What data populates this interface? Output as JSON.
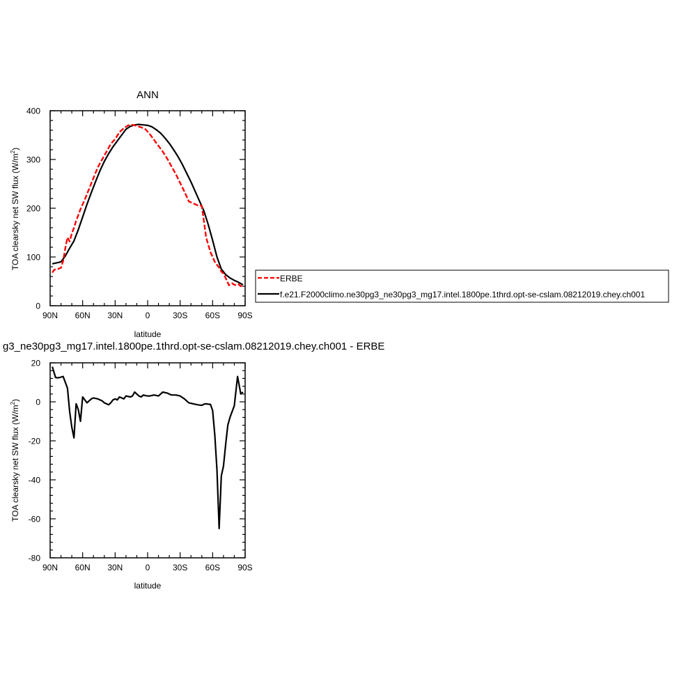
{
  "chart_data": [
    {
      "type": "line",
      "title": "ANN",
      "xlabel": "latitude",
      "ylabel_main": "TOA clearsky net SW flux (W/m",
      "ylabel_sup": "2",
      "ylabel_close": ")",
      "xlim": [
        90,
        -90
      ],
      "ylim": [
        0,
        400
      ],
      "x_ticks": [
        {
          "value": 90,
          "label": "90N"
        },
        {
          "value": 60,
          "label": "60N"
        },
        {
          "value": 30,
          "label": "30N"
        },
        {
          "value": 0,
          "label": "0"
        },
        {
          "value": -30,
          "label": "30S"
        },
        {
          "value": -60,
          "label": "60S"
        },
        {
          "value": -90,
          "label": "90S"
        }
      ],
      "y_ticks": [
        0,
        100,
        200,
        300,
        400
      ],
      "legend_position": "right",
      "series": [
        {
          "name": "ERBE",
          "color": "#ff0000",
          "dash": "dashed",
          "x": [
            88,
            86,
            83,
            80,
            78,
            76,
            74,
            72,
            70,
            68,
            66,
            62,
            58,
            54,
            50,
            46,
            42,
            38,
            34,
            30,
            26,
            22,
            18,
            14,
            10,
            6,
            2,
            -2,
            -6,
            -10,
            -14,
            -18,
            -22,
            -26,
            -30,
            -34,
            -38,
            -42,
            -46,
            -50,
            -54,
            -58,
            -62,
            -66,
            -68,
            -70,
            -72,
            -75,
            -78,
            -80,
            -82,
            -84,
            -86,
            -88
          ],
          "y": [
            68,
            74,
            75,
            78,
            92,
            118,
            140,
            132,
            148,
            160,
            174,
            198,
            218,
            240,
            262,
            284,
            300,
            316,
            332,
            342,
            356,
            364,
            370,
            371,
            369,
            366,
            362,
            352,
            340,
            328,
            316,
            302,
            286,
            270,
            252,
            234,
            214,
            210,
            206,
            205,
            140,
            110,
            90,
            78,
            70,
            66,
            57,
            42,
            46,
            43,
            42,
            44,
            40,
            42
          ],
          "marker_x": [
            78.5,
            73.5,
            68.5,
            58.5,
            48.5,
            38.5,
            28.5,
            18.5,
            8.5,
            -1.5,
            -11.5,
            -21.5,
            -31.5,
            -41.5,
            -51.5,
            -61.5,
            -71.5,
            -81.5
          ]
        },
        {
          "name": "f.e21.F2000climo.ne30pg3_ne30pg3_mg17.intel.1800pe.1thrd.opt-se-cslam.08212019.chey.ch001",
          "color": "#000000",
          "dash": "solid",
          "x": [
            88,
            84,
            80,
            76,
            72,
            68,
            64,
            60,
            56,
            52,
            48,
            44,
            40,
            36,
            32,
            28,
            24,
            20,
            16,
            12,
            8,
            4,
            0,
            -4,
            -8,
            -12,
            -16,
            -20,
            -24,
            -28,
            -32,
            -36,
            -40,
            -44,
            -48,
            -52,
            -56,
            -60,
            -64,
            -68,
            -72,
            -76,
            -80,
            -84,
            -88
          ],
          "y": [
            86,
            88,
            90,
            102,
            118,
            133,
            156,
            182,
            208,
            232,
            255,
            277,
            296,
            312,
            326,
            338,
            350,
            362,
            368,
            371,
            372,
            371,
            370,
            367,
            361,
            354,
            344,
            333,
            320,
            306,
            290,
            272,
            254,
            234,
            214,
            194,
            166,
            134,
            100,
            75,
            64,
            57,
            52,
            48,
            43
          ]
        }
      ]
    },
    {
      "type": "line",
      "title": "g3_ne30pg3_mg17.intel.1800pe.1thrd.opt-se-cslam.08212019.chey.ch001 - ERBE",
      "xlabel": "latitude",
      "ylabel_main": "TOA clearsky net SW flux (W/m",
      "ylabel_sup": "2",
      "ylabel_close": ")",
      "xlim": [
        90,
        -90
      ],
      "ylim": [
        -80,
        20
      ],
      "x_ticks": [
        {
          "value": 90,
          "label": "90N"
        },
        {
          "value": 60,
          "label": "60N"
        },
        {
          "value": 30,
          "label": "30N"
        },
        {
          "value": 0,
          "label": "0"
        },
        {
          "value": -30,
          "label": "30S"
        },
        {
          "value": -60,
          "label": "60S"
        },
        {
          "value": -90,
          "label": "90S"
        }
      ],
      "y_ticks": [
        -80,
        -60,
        -40,
        -20,
        0,
        20
      ],
      "series": [
        {
          "name": "",
          "color": "#000000",
          "dash": "solid",
          "x": [
            88,
            85,
            83,
            81,
            78,
            76,
            74,
            72,
            70,
            68,
            66,
            64,
            62,
            60,
            58,
            56,
            54,
            52,
            50,
            46,
            42,
            40,
            38,
            36,
            34,
            32,
            30,
            28,
            26,
            24,
            22,
            20,
            16,
            14,
            12,
            10,
            8,
            6,
            4,
            2,
            0,
            -2,
            -6,
            -10,
            -14,
            -18,
            -22,
            -26,
            -30,
            -34,
            -38,
            -42,
            -46,
            -50,
            -52,
            -54,
            -56,
            -58,
            -60,
            -62,
            -64,
            -66,
            -68,
            -70,
            -72,
            -74,
            -76,
            -78,
            -80,
            -83,
            -86,
            -88
          ],
          "y": [
            18,
            12.5,
            12.3,
            12.5,
            13,
            10,
            7,
            -5,
            -13,
            -18.5,
            -1,
            -4,
            -10,
            2.5,
            1,
            -0.5,
            0.5,
            1.5,
            2,
            1.5,
            0.5,
            -0.5,
            -1,
            -1.5,
            -0.5,
            1,
            1.5,
            1,
            2.5,
            2,
            1.5,
            3,
            2.5,
            3,
            5,
            4,
            3,
            2.5,
            3.5,
            3.2,
            3,
            3,
            3.5,
            3,
            5,
            4.5,
            3.5,
            3.5,
            3,
            1.5,
            -0.5,
            -1,
            -1.5,
            -1.8,
            -1.2,
            -1,
            -1.2,
            -1.3,
            -4.5,
            -17,
            -35,
            -65,
            -38,
            -33,
            -22,
            -12,
            -8,
            -5,
            -2,
            13,
            4,
            5
          ]
        }
      ]
    }
  ]
}
